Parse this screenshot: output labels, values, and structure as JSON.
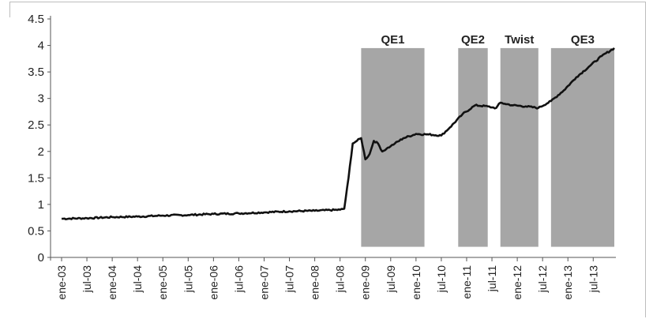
{
  "chart_data": {
    "type": "line",
    "title": "",
    "xlabel": "",
    "ylabel": "",
    "ylim": [
      0,
      4.5
    ],
    "y_ticks": [
      "0",
      "0.5",
      "1",
      "1.5",
      "2",
      "2.5",
      "3",
      "3.5",
      "4",
      "4.5"
    ],
    "x_ticks": [
      "ene-03",
      "jul-03",
      "ene-04",
      "jul-04",
      "ene-05",
      "jul-05",
      "ene-06",
      "jul-06",
      "ene-07",
      "jul-07",
      "ene-08",
      "jul-08",
      "ene-09",
      "jul-09",
      "ene-10",
      "jul-10",
      "ene-11",
      "jul-11",
      "ene-12",
      "jul-12",
      "ene-13",
      "jul-13"
    ],
    "x_range": [
      "2003-01",
      "2013-12"
    ],
    "grid": false,
    "line_color": "#111111",
    "band_color": "#a6a6a6",
    "bands": [
      {
        "label": "QE1",
        "start": "2008-12",
        "end": "2010-03",
        "top": 3.95,
        "bottom": 0.2
      },
      {
        "label": "QE2",
        "start": "2010-11",
        "end": "2011-06",
        "top": 3.95,
        "bottom": 0.2
      },
      {
        "label": "Twist",
        "start": "2011-09",
        "end": "2012-06",
        "top": 3.95,
        "bottom": 0.2
      },
      {
        "label": "QE3",
        "start": "2012-09",
        "end": "2013-12",
        "top": 3.95,
        "bottom": 0.2
      }
    ],
    "series": [
      {
        "x": [
          "2003-01",
          "2003-07",
          "2004-01",
          "2004-07",
          "2005-01",
          "2005-07",
          "2006-01",
          "2006-07",
          "2007-01",
          "2007-07",
          "2008-01",
          "2008-07",
          "2008-08",
          "2008-09",
          "2008-10",
          "2008-11",
          "2008-12",
          "2009-01",
          "2009-02",
          "2009-03",
          "2009-04",
          "2009-05",
          "2009-06",
          "2009-07",
          "2009-08",
          "2009-10",
          "2010-01",
          "2010-04",
          "2010-07",
          "2010-09",
          "2010-12",
          "2011-03",
          "2011-06",
          "2011-07",
          "2011-08",
          "2011-09",
          "2011-10",
          "2011-12",
          "2012-03",
          "2012-06",
          "2012-09",
          "2012-12",
          "2013-03",
          "2013-06",
          "2013-09",
          "2013-12"
        ],
        "values": [
          0.73,
          0.74,
          0.76,
          0.77,
          0.79,
          0.8,
          0.82,
          0.83,
          0.85,
          0.87,
          0.88,
          0.9,
          0.92,
          1.5,
          2.15,
          2.2,
          2.25,
          1.85,
          1.95,
          2.2,
          2.15,
          2.0,
          2.05,
          2.1,
          2.15,
          2.25,
          2.33,
          2.32,
          2.3,
          2.45,
          2.7,
          2.87,
          2.85,
          2.83,
          2.82,
          2.92,
          2.9,
          2.87,
          2.85,
          2.82,
          2.95,
          3.15,
          3.4,
          3.6,
          3.8,
          3.95
        ]
      }
    ]
  }
}
